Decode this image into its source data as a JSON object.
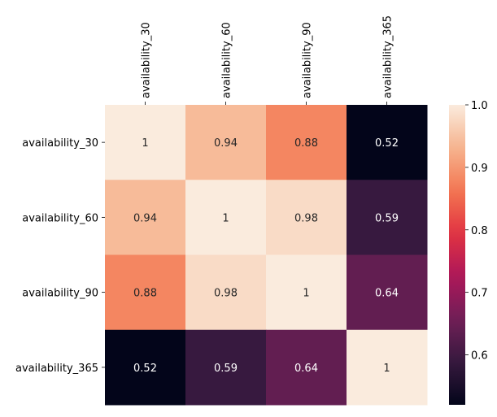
{
  "chart_data": {
    "type": "heatmap",
    "title": "",
    "xlabel": "",
    "ylabel": "",
    "x_tick_position": "top",
    "x_tick_rotation": "vertical",
    "categories_x": [
      "availability_30",
      "availability_60",
      "availability_90",
      "availability_365"
    ],
    "categories_y": [
      "availability_30",
      "availability_60",
      "availability_90",
      "availability_365"
    ],
    "values": [
      [
        1.0,
        0.94,
        0.88,
        0.52
      ],
      [
        0.94,
        1.0,
        0.98,
        0.59
      ],
      [
        0.88,
        0.98,
        1.0,
        0.64
      ],
      [
        0.52,
        0.59,
        0.64,
        1.0
      ]
    ],
    "annotations": [
      [
        "1",
        "0.94",
        "0.88",
        "0.52"
      ],
      [
        "0.94",
        "1",
        "0.98",
        "0.59"
      ],
      [
        "0.88",
        "0.98",
        "1",
        "0.64"
      ],
      [
        "0.52",
        "0.59",
        "0.64",
        "1"
      ]
    ],
    "colormap": "rocket",
    "colormap_stops": [
      "#03051a",
      "#36193e",
      "#701f57",
      "#ad1759",
      "#e13342",
      "#f37651",
      "#f6b48f",
      "#faebdd"
    ],
    "vmin": 0.52,
    "vmax": 1.0,
    "colorbar": {
      "ticks": [
        0.6,
        0.7,
        0.8,
        0.9,
        1.0
      ],
      "tick_labels": [
        "0.6",
        "0.7",
        "0.8",
        "0.9",
        "1.0"
      ],
      "placement": "right"
    },
    "annotation_text_colors": {
      "dark_cell": "#ffffff",
      "light_cell": "#262626"
    }
  }
}
